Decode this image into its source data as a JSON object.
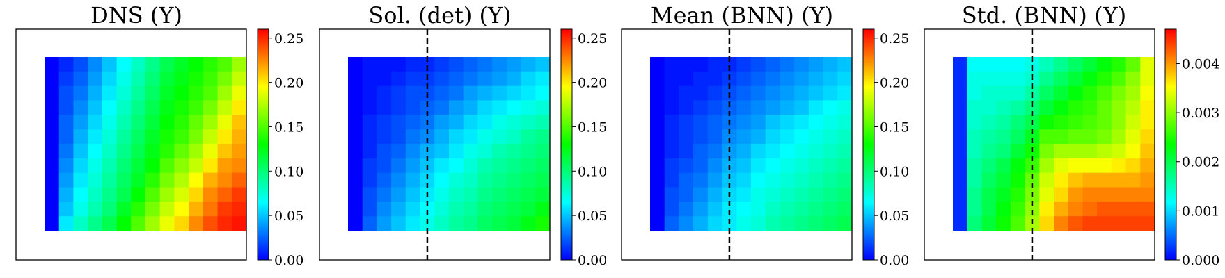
{
  "figure": {
    "colormap_stops": [
      "#0000ff",
      "#0080ff",
      "#00ffff",
      "#00ff80",
      "#00ff00",
      "#80ff00",
      "#ffff00",
      "#ff8000",
      "#ff0000"
    ]
  },
  "chart_data": [
    {
      "type": "heatmap",
      "title": "DNS (Y)",
      "grid": {
        "rows": 12,
        "cols": 14
      },
      "divider_col": null,
      "colorbar": {
        "vmin": 0.0,
        "vmax": 0.26,
        "ticks": [
          "0.00",
          "0.05",
          "0.10",
          "0.15",
          "0.20",
          "0.25"
        ],
        "tick_values": [
          0.0,
          0.05,
          0.1,
          0.15,
          0.2,
          0.25
        ]
      },
      "values": [
        [
          0.0,
          0.01,
          0.02,
          0.035,
          0.05,
          0.065,
          0.08,
          0.095,
          0.11,
          0.12,
          0.13,
          0.14,
          0.15,
          0.17
        ],
        [
          0.0,
          0.015,
          0.025,
          0.04,
          0.055,
          0.07,
          0.085,
          0.1,
          0.115,
          0.125,
          0.135,
          0.145,
          0.16,
          0.18
        ],
        [
          0.0,
          0.02,
          0.03,
          0.045,
          0.06,
          0.075,
          0.09,
          0.105,
          0.12,
          0.13,
          0.14,
          0.15,
          0.17,
          0.19
        ],
        [
          0.0,
          0.02,
          0.035,
          0.05,
          0.065,
          0.08,
          0.095,
          0.11,
          0.125,
          0.135,
          0.145,
          0.16,
          0.18,
          0.2
        ],
        [
          0.0,
          0.025,
          0.04,
          0.055,
          0.07,
          0.085,
          0.1,
          0.115,
          0.13,
          0.14,
          0.155,
          0.17,
          0.19,
          0.21
        ],
        [
          0.0,
          0.025,
          0.045,
          0.06,
          0.075,
          0.09,
          0.105,
          0.12,
          0.135,
          0.145,
          0.16,
          0.18,
          0.2,
          0.215
        ],
        [
          0.0,
          0.03,
          0.05,
          0.065,
          0.08,
          0.095,
          0.11,
          0.125,
          0.14,
          0.155,
          0.17,
          0.19,
          0.21,
          0.22
        ],
        [
          0.0,
          0.035,
          0.055,
          0.07,
          0.085,
          0.1,
          0.115,
          0.13,
          0.15,
          0.165,
          0.18,
          0.2,
          0.22,
          0.225
        ],
        [
          0.0,
          0.04,
          0.06,
          0.075,
          0.09,
          0.105,
          0.12,
          0.14,
          0.16,
          0.175,
          0.195,
          0.215,
          0.225,
          0.235
        ],
        [
          0.0,
          0.045,
          0.065,
          0.08,
          0.095,
          0.11,
          0.13,
          0.15,
          0.17,
          0.185,
          0.205,
          0.225,
          0.235,
          0.245
        ],
        [
          0.0,
          0.05,
          0.07,
          0.085,
          0.1,
          0.12,
          0.14,
          0.16,
          0.18,
          0.195,
          0.215,
          0.23,
          0.245,
          0.25
        ],
        [
          0.0,
          0.06,
          0.08,
          0.095,
          0.11,
          0.13,
          0.15,
          0.17,
          0.19,
          0.205,
          0.225,
          0.24,
          0.25,
          0.255
        ]
      ]
    },
    {
      "type": "heatmap",
      "title": "Sol. (det) (Y)",
      "grid": {
        "rows": 12,
        "cols": 14
      },
      "divider_col": 5.5,
      "colorbar": {
        "vmin": 0.0,
        "vmax": 0.26,
        "ticks": [
          "0.00",
          "0.05",
          "0.10",
          "0.15",
          "0.20",
          "0.25"
        ],
        "tick_values": [
          0.0,
          0.05,
          0.1,
          0.15,
          0.2,
          0.25
        ]
      },
      "values": [
        [
          0.0,
          0.005,
          0.005,
          0.005,
          0.01,
          0.01,
          0.015,
          0.02,
          0.025,
          0.03,
          0.035,
          0.04,
          0.045,
          0.05
        ],
        [
          0.0,
          0.005,
          0.005,
          0.01,
          0.015,
          0.015,
          0.02,
          0.025,
          0.03,
          0.035,
          0.04,
          0.045,
          0.055,
          0.06
        ],
        [
          0.0,
          0.005,
          0.01,
          0.015,
          0.02,
          0.02,
          0.025,
          0.03,
          0.04,
          0.045,
          0.05,
          0.055,
          0.06,
          0.065
        ],
        [
          0.0,
          0.005,
          0.01,
          0.015,
          0.02,
          0.025,
          0.03,
          0.04,
          0.045,
          0.055,
          0.06,
          0.065,
          0.07,
          0.075
        ],
        [
          0.0,
          0.01,
          0.015,
          0.02,
          0.025,
          0.03,
          0.04,
          0.045,
          0.055,
          0.06,
          0.07,
          0.075,
          0.08,
          0.085
        ],
        [
          0.0,
          0.01,
          0.015,
          0.02,
          0.03,
          0.035,
          0.045,
          0.055,
          0.06,
          0.07,
          0.075,
          0.08,
          0.09,
          0.095
        ],
        [
          0.0,
          0.01,
          0.02,
          0.025,
          0.035,
          0.045,
          0.05,
          0.06,
          0.07,
          0.075,
          0.085,
          0.09,
          0.095,
          0.1
        ],
        [
          0.0,
          0.015,
          0.02,
          0.03,
          0.04,
          0.05,
          0.06,
          0.065,
          0.075,
          0.085,
          0.09,
          0.095,
          0.1,
          0.105
        ],
        [
          0.0,
          0.015,
          0.025,
          0.035,
          0.045,
          0.055,
          0.065,
          0.075,
          0.08,
          0.09,
          0.095,
          0.1,
          0.105,
          0.11
        ],
        [
          0.0,
          0.02,
          0.03,
          0.04,
          0.05,
          0.06,
          0.07,
          0.08,
          0.085,
          0.095,
          0.1,
          0.105,
          0.11,
          0.115
        ],
        [
          0.0,
          0.02,
          0.035,
          0.045,
          0.055,
          0.065,
          0.075,
          0.085,
          0.09,
          0.1,
          0.105,
          0.11,
          0.115,
          0.125
        ],
        [
          0.0,
          0.025,
          0.04,
          0.05,
          0.06,
          0.07,
          0.08,
          0.09,
          0.095,
          0.105,
          0.11,
          0.115,
          0.125,
          0.135
        ]
      ]
    },
    {
      "type": "heatmap",
      "title": "Mean (BNN) (Y)",
      "grid": {
        "rows": 12,
        "cols": 14
      },
      "divider_col": 5.5,
      "colorbar": {
        "vmin": 0.0,
        "vmax": 0.26,
        "ticks": [
          "0.00",
          "0.05",
          "0.10",
          "0.15",
          "0.20",
          "0.25"
        ],
        "tick_values": [
          0.0,
          0.05,
          0.1,
          0.15,
          0.2,
          0.25
        ]
      },
      "values": [
        [
          0.0,
          0.005,
          0.005,
          0.005,
          0.01,
          0.01,
          0.015,
          0.02,
          0.025,
          0.03,
          0.035,
          0.04,
          0.045,
          0.05
        ],
        [
          0.0,
          0.005,
          0.005,
          0.01,
          0.01,
          0.015,
          0.02,
          0.025,
          0.03,
          0.035,
          0.04,
          0.045,
          0.05,
          0.055
        ],
        [
          0.0,
          0.005,
          0.01,
          0.01,
          0.015,
          0.02,
          0.025,
          0.03,
          0.035,
          0.04,
          0.045,
          0.05,
          0.055,
          0.06
        ],
        [
          0.0,
          0.005,
          0.01,
          0.015,
          0.02,
          0.025,
          0.03,
          0.035,
          0.04,
          0.045,
          0.05,
          0.06,
          0.065,
          0.07
        ],
        [
          0.0,
          0.01,
          0.015,
          0.02,
          0.025,
          0.03,
          0.035,
          0.04,
          0.05,
          0.055,
          0.06,
          0.065,
          0.07,
          0.075
        ],
        [
          0.0,
          0.01,
          0.015,
          0.02,
          0.025,
          0.035,
          0.04,
          0.045,
          0.055,
          0.06,
          0.065,
          0.07,
          0.075,
          0.08
        ],
        [
          0.0,
          0.01,
          0.015,
          0.025,
          0.03,
          0.04,
          0.045,
          0.055,
          0.06,
          0.065,
          0.07,
          0.075,
          0.08,
          0.085
        ],
        [
          0.0,
          0.015,
          0.02,
          0.025,
          0.035,
          0.045,
          0.05,
          0.06,
          0.065,
          0.07,
          0.075,
          0.08,
          0.085,
          0.09
        ],
        [
          0.0,
          0.015,
          0.025,
          0.03,
          0.04,
          0.05,
          0.055,
          0.065,
          0.07,
          0.075,
          0.08,
          0.085,
          0.09,
          0.095
        ],
        [
          0.0,
          0.02,
          0.025,
          0.035,
          0.045,
          0.055,
          0.06,
          0.07,
          0.075,
          0.08,
          0.085,
          0.09,
          0.095,
          0.1
        ],
        [
          0.0,
          0.02,
          0.03,
          0.04,
          0.05,
          0.06,
          0.065,
          0.07,
          0.08,
          0.085,
          0.09,
          0.095,
          0.1,
          0.105
        ],
        [
          0.0,
          0.025,
          0.035,
          0.045,
          0.055,
          0.06,
          0.07,
          0.075,
          0.085,
          0.09,
          0.095,
          0.1,
          0.105,
          0.11
        ]
      ]
    },
    {
      "type": "heatmap",
      "title": "Std. (BNN) (Y)",
      "grid": {
        "rows": 12,
        "cols": 14
      },
      "divider_col": 5.5,
      "colorbar": {
        "vmin": 0.0,
        "vmax": 0.0047,
        "ticks": [
          "0.000",
          "0.001",
          "0.002",
          "0.003",
          "0.004"
        ],
        "tick_values": [
          0.0,
          0.001,
          0.002,
          0.003,
          0.004
        ]
      },
      "values": [
        [
          0.0002,
          0.0012,
          0.0012,
          0.0012,
          0.0012,
          0.0013,
          0.0015,
          0.0017,
          0.0019,
          0.0021,
          0.0023,
          0.0025,
          0.0028,
          0.0034
        ],
        [
          0.0002,
          0.0013,
          0.0013,
          0.0013,
          0.0013,
          0.0014,
          0.0017,
          0.0019,
          0.0021,
          0.0023,
          0.0025,
          0.0027,
          0.003,
          0.0034
        ],
        [
          0.0002,
          0.0013,
          0.0014,
          0.0014,
          0.0014,
          0.0016,
          0.0019,
          0.0021,
          0.0023,
          0.0025,
          0.0027,
          0.0029,
          0.0031,
          0.0035
        ],
        [
          0.0002,
          0.0014,
          0.0014,
          0.0015,
          0.0016,
          0.0018,
          0.0021,
          0.0023,
          0.0025,
          0.0026,
          0.0028,
          0.003,
          0.0032,
          0.0036
        ],
        [
          0.0002,
          0.0014,
          0.0015,
          0.0016,
          0.0018,
          0.002,
          0.0024,
          0.0025,
          0.0026,
          0.0027,
          0.0028,
          0.003,
          0.0033,
          0.0036
        ],
        [
          0.0002,
          0.0015,
          0.0016,
          0.0017,
          0.0019,
          0.0022,
          0.0027,
          0.0027,
          0.0028,
          0.0028,
          0.0029,
          0.0031,
          0.0034,
          0.0037
        ],
        [
          0.0002,
          0.0015,
          0.0017,
          0.0018,
          0.0021,
          0.0024,
          0.0029,
          0.0031,
          0.0031,
          0.0031,
          0.0032,
          0.0033,
          0.0035,
          0.0038
        ],
        [
          0.0002,
          0.0016,
          0.0018,
          0.002,
          0.0023,
          0.0026,
          0.0031,
          0.0034,
          0.0035,
          0.0035,
          0.0035,
          0.0036,
          0.0037,
          0.0039
        ],
        [
          0.0002,
          0.0016,
          0.0019,
          0.0021,
          0.0024,
          0.0028,
          0.0033,
          0.0036,
          0.0038,
          0.0039,
          0.0039,
          0.0039,
          0.0039,
          0.004
        ],
        [
          0.0002,
          0.0017,
          0.002,
          0.0022,
          0.0025,
          0.0029,
          0.0034,
          0.0037,
          0.004,
          0.0041,
          0.0041,
          0.0041,
          0.0041,
          0.0041
        ],
        [
          0.0002,
          0.0017,
          0.002,
          0.0023,
          0.0026,
          0.003,
          0.0036,
          0.0039,
          0.0041,
          0.0042,
          0.0043,
          0.0043,
          0.0043,
          0.0043
        ],
        [
          0.0002,
          0.0018,
          0.0021,
          0.0024,
          0.0027,
          0.0031,
          0.0037,
          0.0041,
          0.0043,
          0.0044,
          0.0044,
          0.0044,
          0.0044,
          0.0044
        ]
      ]
    }
  ]
}
